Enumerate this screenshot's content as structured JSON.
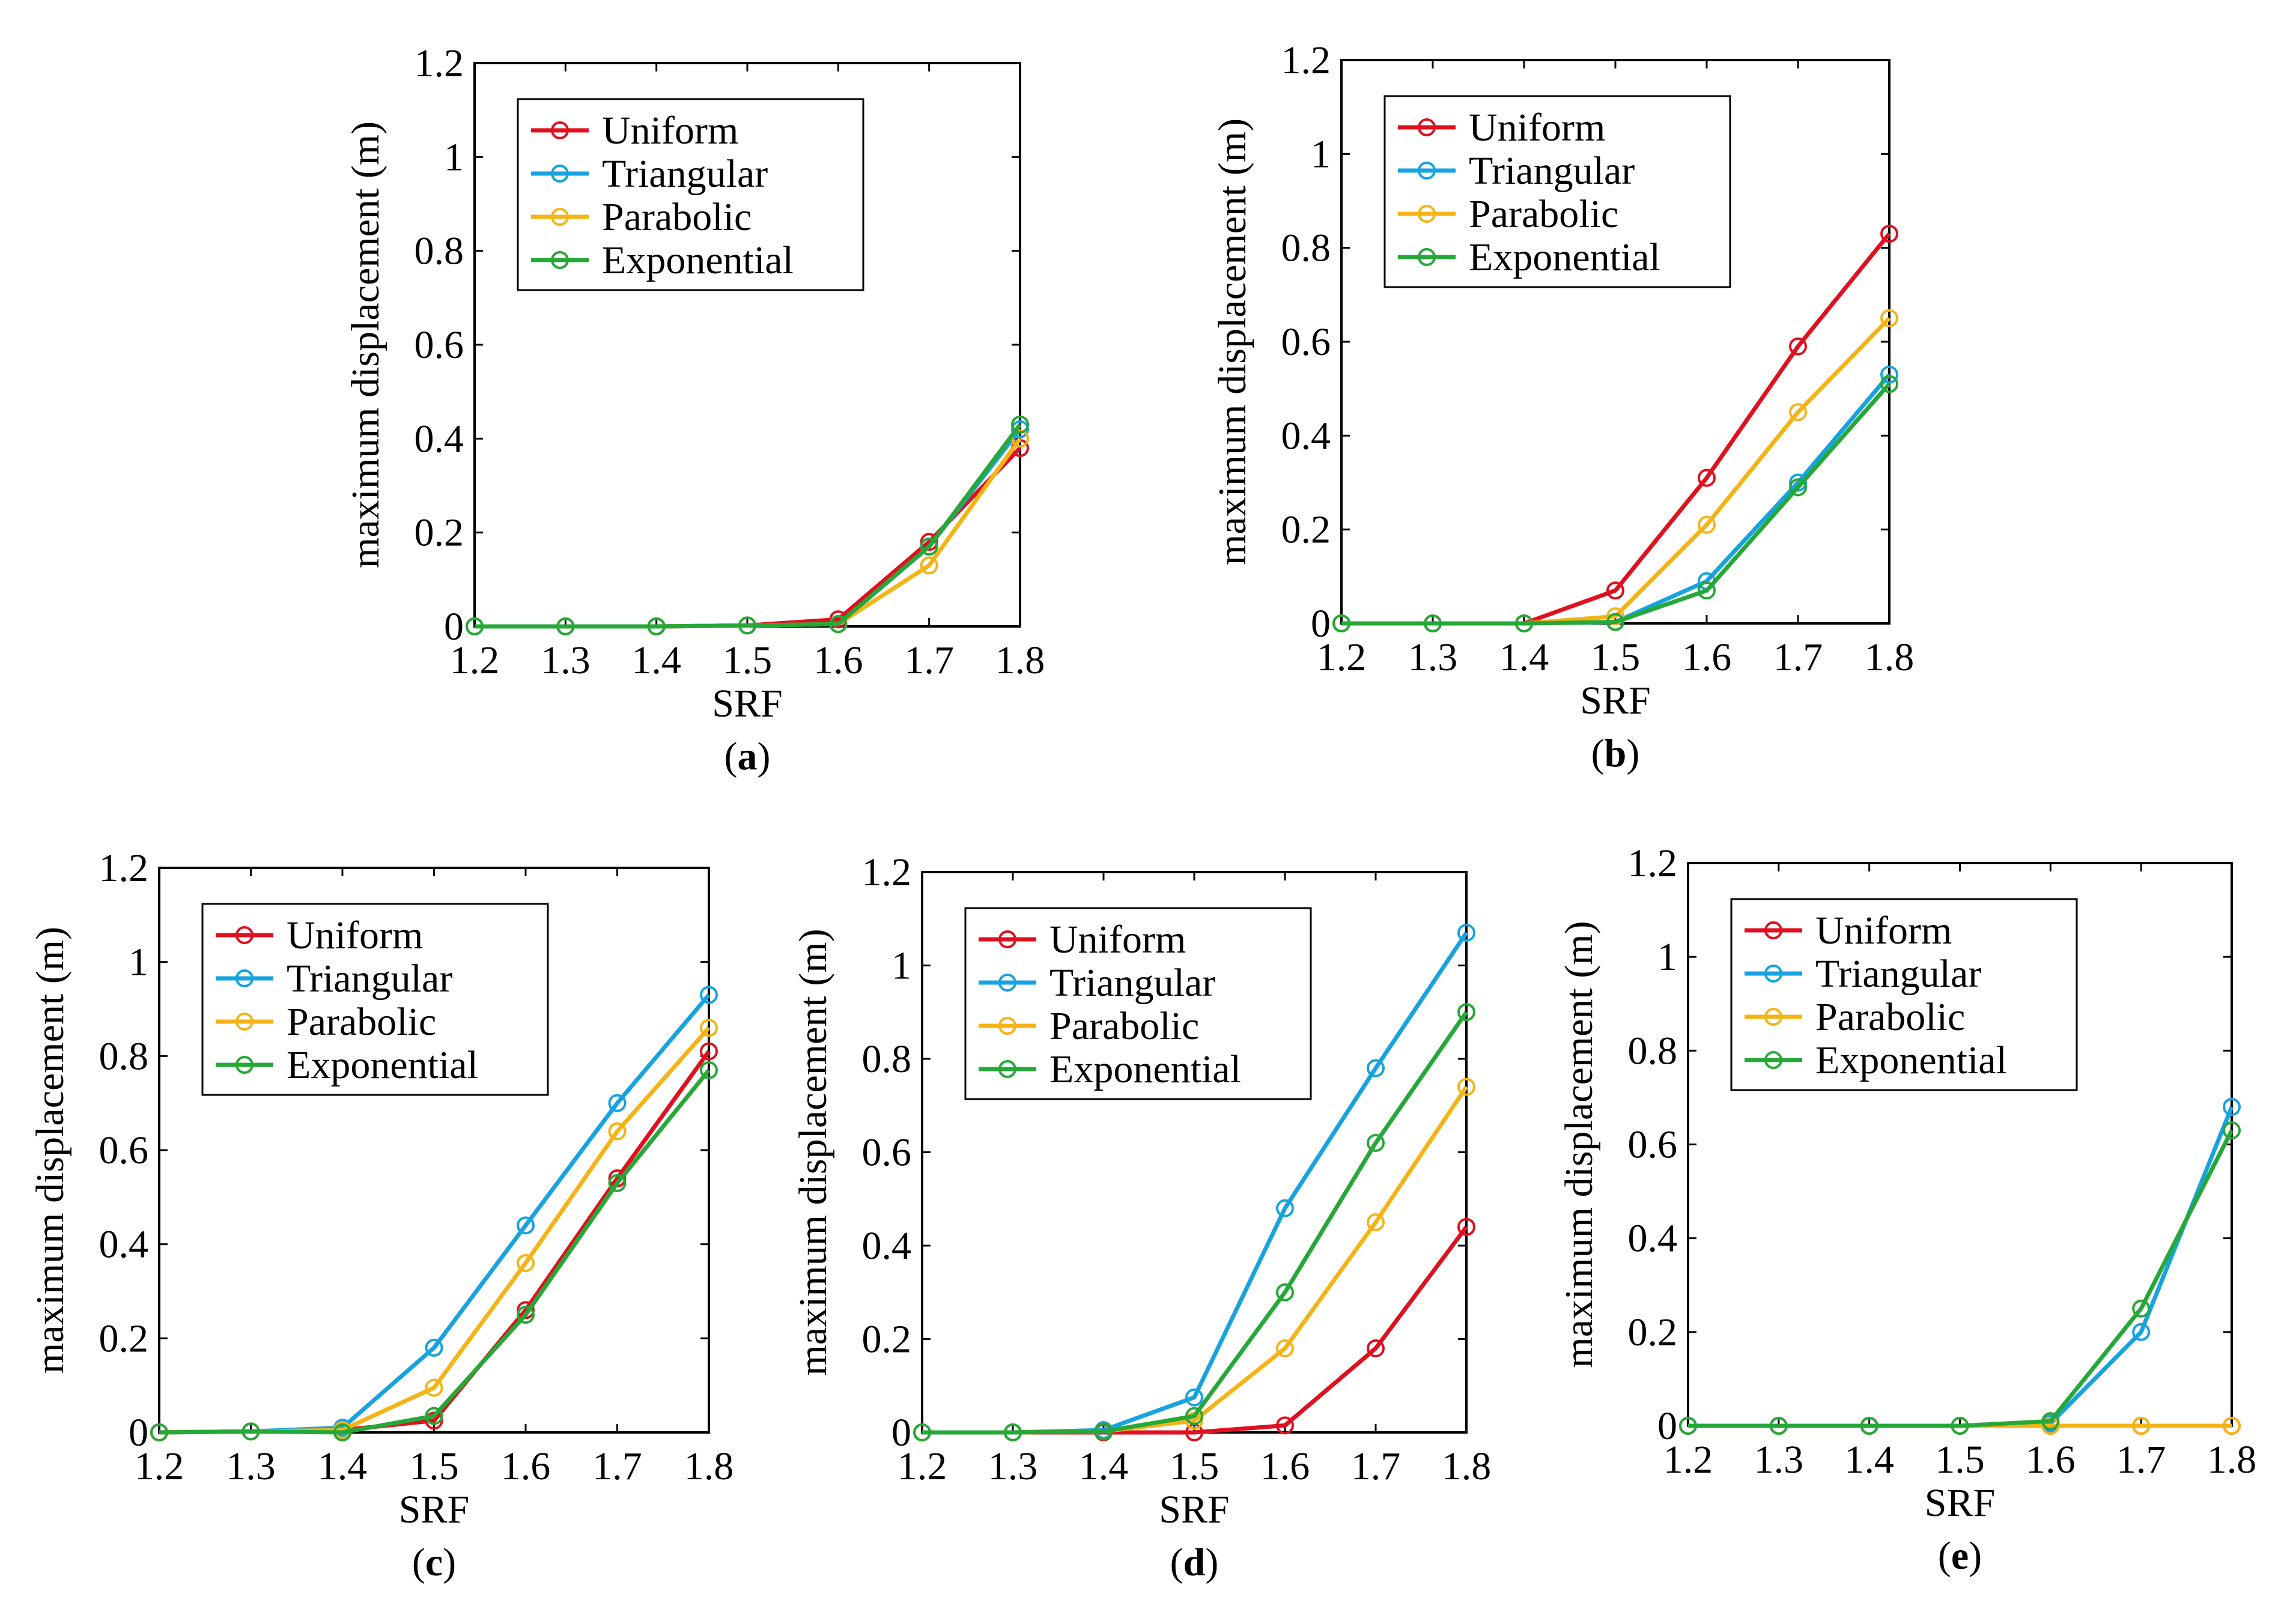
{
  "figure": {
    "panels": [
      "(a)",
      "(b)",
      "(c)",
      "(d)",
      "(e)"
    ]
  },
  "colors": {
    "Uniform": "#e0101f",
    "Triangular": "#16a3e0",
    "Parabolic": "#f5b416",
    "Exponential": "#26a838",
    "axis": "#000000"
  },
  "chart_data": [
    {
      "type": "line",
      "panel_label": "(a)",
      "xlabel": "SRF",
      "ylabel": "maximum displacement (m)",
      "xlim": [
        1.2,
        1.8
      ],
      "ylim": [
        0,
        1.2
      ],
      "xticks": [
        "1.2",
        "1.3",
        "1.4",
        "1.5",
        "1.6",
        "1.7",
        "1.8"
      ],
      "yticks": [
        "0",
        "0.2",
        "0.4",
        "0.6",
        "0.8",
        "1",
        "1.2"
      ],
      "legend_position": "top-left",
      "x": [
        1.2,
        1.3,
        1.4,
        1.5,
        1.6,
        1.7,
        1.8
      ],
      "series": [
        {
          "name": "Uniform",
          "values": [
            0,
            0,
            0,
            0.002,
            0.015,
            0.18,
            0.38
          ]
        },
        {
          "name": "Triangular",
          "values": [
            0,
            0,
            0,
            0.002,
            0.005,
            0.17,
            0.42
          ]
        },
        {
          "name": "Parabolic",
          "values": [
            0,
            0,
            0,
            0.002,
            0.005,
            0.13,
            0.4
          ]
        },
        {
          "name": "Exponential",
          "values": [
            0,
            0,
            0,
            0.002,
            0.005,
            0.17,
            0.43
          ]
        }
      ]
    },
    {
      "type": "line",
      "panel_label": "(b)",
      "xlabel": "SRF",
      "ylabel": "maximum displacement (m)",
      "xlim": [
        1.2,
        1.8
      ],
      "ylim": [
        0,
        1.2
      ],
      "xticks": [
        "1.2",
        "1.3",
        "1.4",
        "1.5",
        "1.6",
        "1.7",
        "1.8"
      ],
      "yticks": [
        "0",
        "0.2",
        "0.4",
        "0.6",
        "0.8",
        "1",
        "1.2"
      ],
      "legend_position": "top-left",
      "x": [
        1.2,
        1.3,
        1.4,
        1.5,
        1.6,
        1.7,
        1.8
      ],
      "series": [
        {
          "name": "Uniform",
          "values": [
            0,
            0,
            0,
            0.07,
            0.31,
            0.59,
            0.83
          ]
        },
        {
          "name": "Triangular",
          "values": [
            0,
            0,
            0,
            0.003,
            0.09,
            0.3,
            0.53
          ]
        },
        {
          "name": "Parabolic",
          "values": [
            0,
            0,
            0,
            0.015,
            0.21,
            0.45,
            0.65
          ]
        },
        {
          "name": "Exponential",
          "values": [
            0,
            0,
            0,
            0.003,
            0.07,
            0.29,
            0.51
          ]
        }
      ]
    },
    {
      "type": "line",
      "panel_label": "(c)",
      "xlabel": "SRF",
      "ylabel": "maximum displacement (m)",
      "xlim": [
        1.2,
        1.8
      ],
      "ylim": [
        0,
        1.2
      ],
      "xticks": [
        "1.2",
        "1.3",
        "1.4",
        "1.5",
        "1.6",
        "1.7",
        "1.8"
      ],
      "yticks": [
        "0",
        "0.2",
        "0.4",
        "0.6",
        "0.8",
        "1",
        "1.2"
      ],
      "legend_position": "top-left",
      "x": [
        1.2,
        1.3,
        1.4,
        1.5,
        1.6,
        1.7,
        1.8
      ],
      "series": [
        {
          "name": "Uniform",
          "values": [
            0,
            0.002,
            0.005,
            0.025,
            0.26,
            0.54,
            0.81
          ]
        },
        {
          "name": "Triangular",
          "values": [
            0,
            0.002,
            0.01,
            0.18,
            0.44,
            0.7,
            0.93
          ]
        },
        {
          "name": "Parabolic",
          "values": [
            0,
            0.002,
            0.005,
            0.095,
            0.36,
            0.64,
            0.86
          ]
        },
        {
          "name": "Exponential",
          "values": [
            0,
            0.002,
            0,
            0.035,
            0.25,
            0.53,
            0.77
          ]
        }
      ]
    },
    {
      "type": "line",
      "panel_label": "(d)",
      "xlabel": "SRF",
      "ylabel": "maximum displacement (m)",
      "xlim": [
        1.2,
        1.8
      ],
      "ylim": [
        0,
        1.2
      ],
      "xticks": [
        "1.2",
        "1.3",
        "1.4",
        "1.5",
        "1.6",
        "1.7",
        "1.8"
      ],
      "yticks": [
        "0",
        "0.2",
        "0.4",
        "0.6",
        "0.8",
        "1",
        "1.2"
      ],
      "legend_position": "top-left",
      "x": [
        1.2,
        1.3,
        1.4,
        1.5,
        1.6,
        1.7,
        1.8
      ],
      "series": [
        {
          "name": "Uniform",
          "values": [
            0,
            0,
            0,
            0,
            0.015,
            0.18,
            0.44
          ]
        },
        {
          "name": "Triangular",
          "values": [
            0,
            0,
            0.005,
            0.075,
            0.48,
            0.78,
            1.07
          ]
        },
        {
          "name": "Parabolic",
          "values": [
            0,
            0,
            0.002,
            0.025,
            0.18,
            0.45,
            0.74
          ]
        },
        {
          "name": "Exponential",
          "values": [
            0,
            0,
            0.002,
            0.035,
            0.3,
            0.62,
            0.9
          ]
        }
      ]
    },
    {
      "type": "line",
      "panel_label": "(e)",
      "xlabel": "SRF",
      "ylabel": "maximum displacement (m)",
      "xlim": [
        1.2,
        1.8
      ],
      "ylim": [
        0,
        1.2
      ],
      "xticks": [
        "1.2",
        "1.3",
        "1.4",
        "1.5",
        "1.6",
        "1.7",
        "1.8"
      ],
      "yticks": [
        "0",
        "0.2",
        "0.4",
        "0.6",
        "0.8",
        "1",
        "1.2"
      ],
      "legend_position": "top-left",
      "x": [
        1.2,
        1.3,
        1.4,
        1.5,
        1.6,
        1.7,
        1.8
      ],
      "series": [
        {
          "name": "Uniform",
          "values": [
            0,
            0,
            0,
            0,
            0,
            0,
            0
          ]
        },
        {
          "name": "Triangular",
          "values": [
            0,
            0,
            0,
            0,
            0.005,
            0.2,
            0.68
          ]
        },
        {
          "name": "Parabolic",
          "values": [
            0,
            0,
            0,
            0,
            0,
            0,
            0
          ]
        },
        {
          "name": "Exponential",
          "values": [
            0,
            0,
            0,
            0,
            0.01,
            0.25,
            0.63
          ]
        }
      ]
    }
  ]
}
